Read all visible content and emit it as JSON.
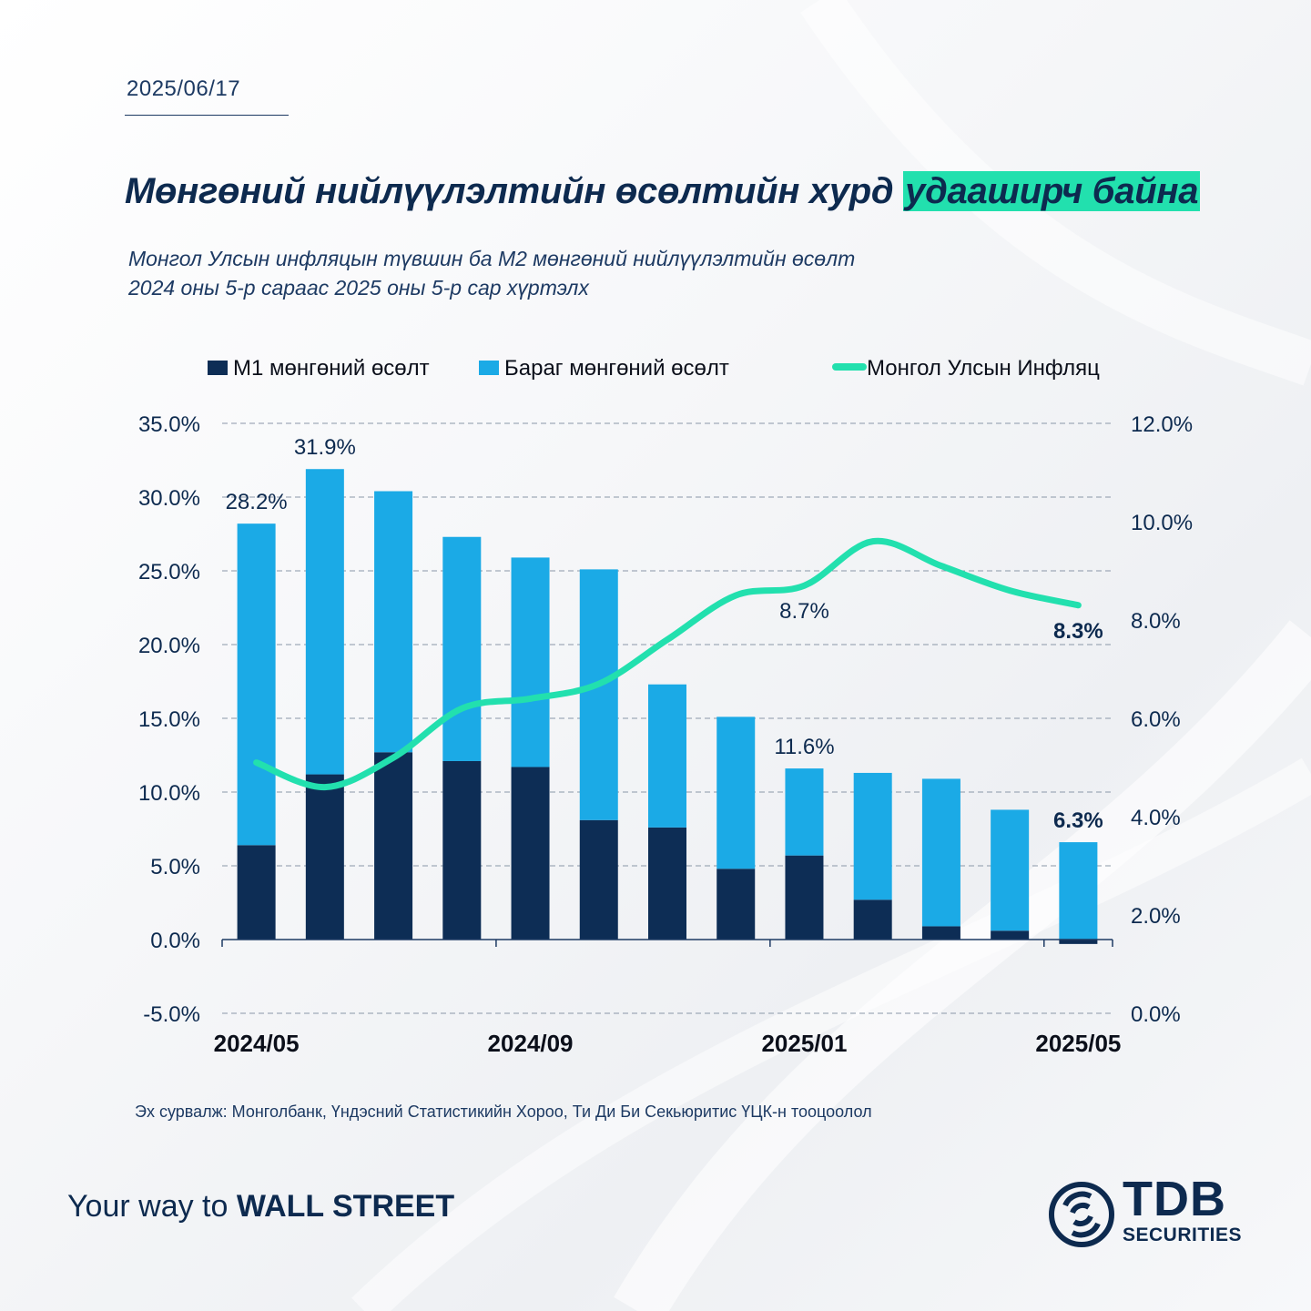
{
  "header": {
    "date": "2025/06/17",
    "title_main": "Мөнгөний нийлүүлэлтийн өсөлтийн хурд ",
    "title_highlight": "удааширч байна",
    "subtitle_line1": "Монгол Улсын инфляцын түвшин  ба M2 мөнгөний нийлүүлэлтийн өсөлт",
    "subtitle_line2": "2024 оны 5-р сараас 2025 оны 5-р сар хүртэлх"
  },
  "colors": {
    "m1": "#0d2d55",
    "quasi": "#1baae6",
    "inflation": "#22e0ae",
    "grid": "#8a97a8",
    "text": "#0d2a4f"
  },
  "chart_data": {
    "type": "bar",
    "stacked": true,
    "categories": [
      "2024/05",
      "2024/06",
      "2024/07",
      "2024/08",
      "2024/09",
      "2024/10",
      "2024/11",
      "2024/12",
      "2025/01",
      "2025/02",
      "2025/03",
      "2025/04",
      "2025/05"
    ],
    "x_tick_labels": [
      "2024/05",
      "2024/09",
      "2025/01",
      "2025/05"
    ],
    "series": [
      {
        "name": "M1 мөнгөний өсөлт",
        "type": "bar",
        "axis": "left",
        "values": [
          6.4,
          11.2,
          12.7,
          12.1,
          11.7,
          8.1,
          7.6,
          4.8,
          5.7,
          2.7,
          0.9,
          0.6,
          -0.3
        ]
      },
      {
        "name": "Бараг мөнгөний өсөлт",
        "type": "bar",
        "axis": "left",
        "values": [
          21.8,
          20.7,
          17.7,
          15.2,
          14.2,
          17.0,
          9.7,
          10.3,
          5.9,
          8.6,
          10.0,
          8.2,
          6.6
        ]
      },
      {
        "name": "Монгол Улсын Инфляц",
        "type": "line",
        "axis": "right",
        "values": [
          5.1,
          4.6,
          5.2,
          6.2,
          6.4,
          6.7,
          7.6,
          8.5,
          8.7,
          9.6,
          9.1,
          8.6,
          8.3
        ]
      }
    ],
    "bar_labels": [
      {
        "index": 0,
        "text": "28.2%",
        "bold": false
      },
      {
        "index": 1,
        "text": "31.9%",
        "bold": false
      },
      {
        "index": 8,
        "text": "11.6%",
        "bold": false
      },
      {
        "index": 12,
        "text": "6.3%",
        "bold": true
      }
    ],
    "line_labels": [
      {
        "index": 8,
        "text": "8.7%",
        "bold": false
      },
      {
        "index": 12,
        "text": "8.3%",
        "bold": true
      }
    ],
    "ylim_left": [
      -5,
      35
    ],
    "yticks_left": [
      "35.0%",
      "30.0%",
      "25.0%",
      "20.0%",
      "15.0%",
      "10.0%",
      "5.0%",
      "0.0%",
      "-5.0%"
    ],
    "ylim_right": [
      0,
      12
    ],
    "yticks_right": [
      "12.0%",
      "10.0%",
      "8.0%",
      "6.0%",
      "4.0%",
      "2.0%",
      "0.0%"
    ],
    "legend_position": "top",
    "grid": true
  },
  "footer": {
    "source": "Эх сурвалж: Монголбанк, Үндэсний Статистикийн Хороо, Ти Ди Би Секьюритис ҮЦК-н тооцоолол",
    "slogan_light": "Your way to ",
    "slogan_bold": "WALL STREET",
    "logo_main": "TDB",
    "logo_sub": "SECURITIES"
  }
}
